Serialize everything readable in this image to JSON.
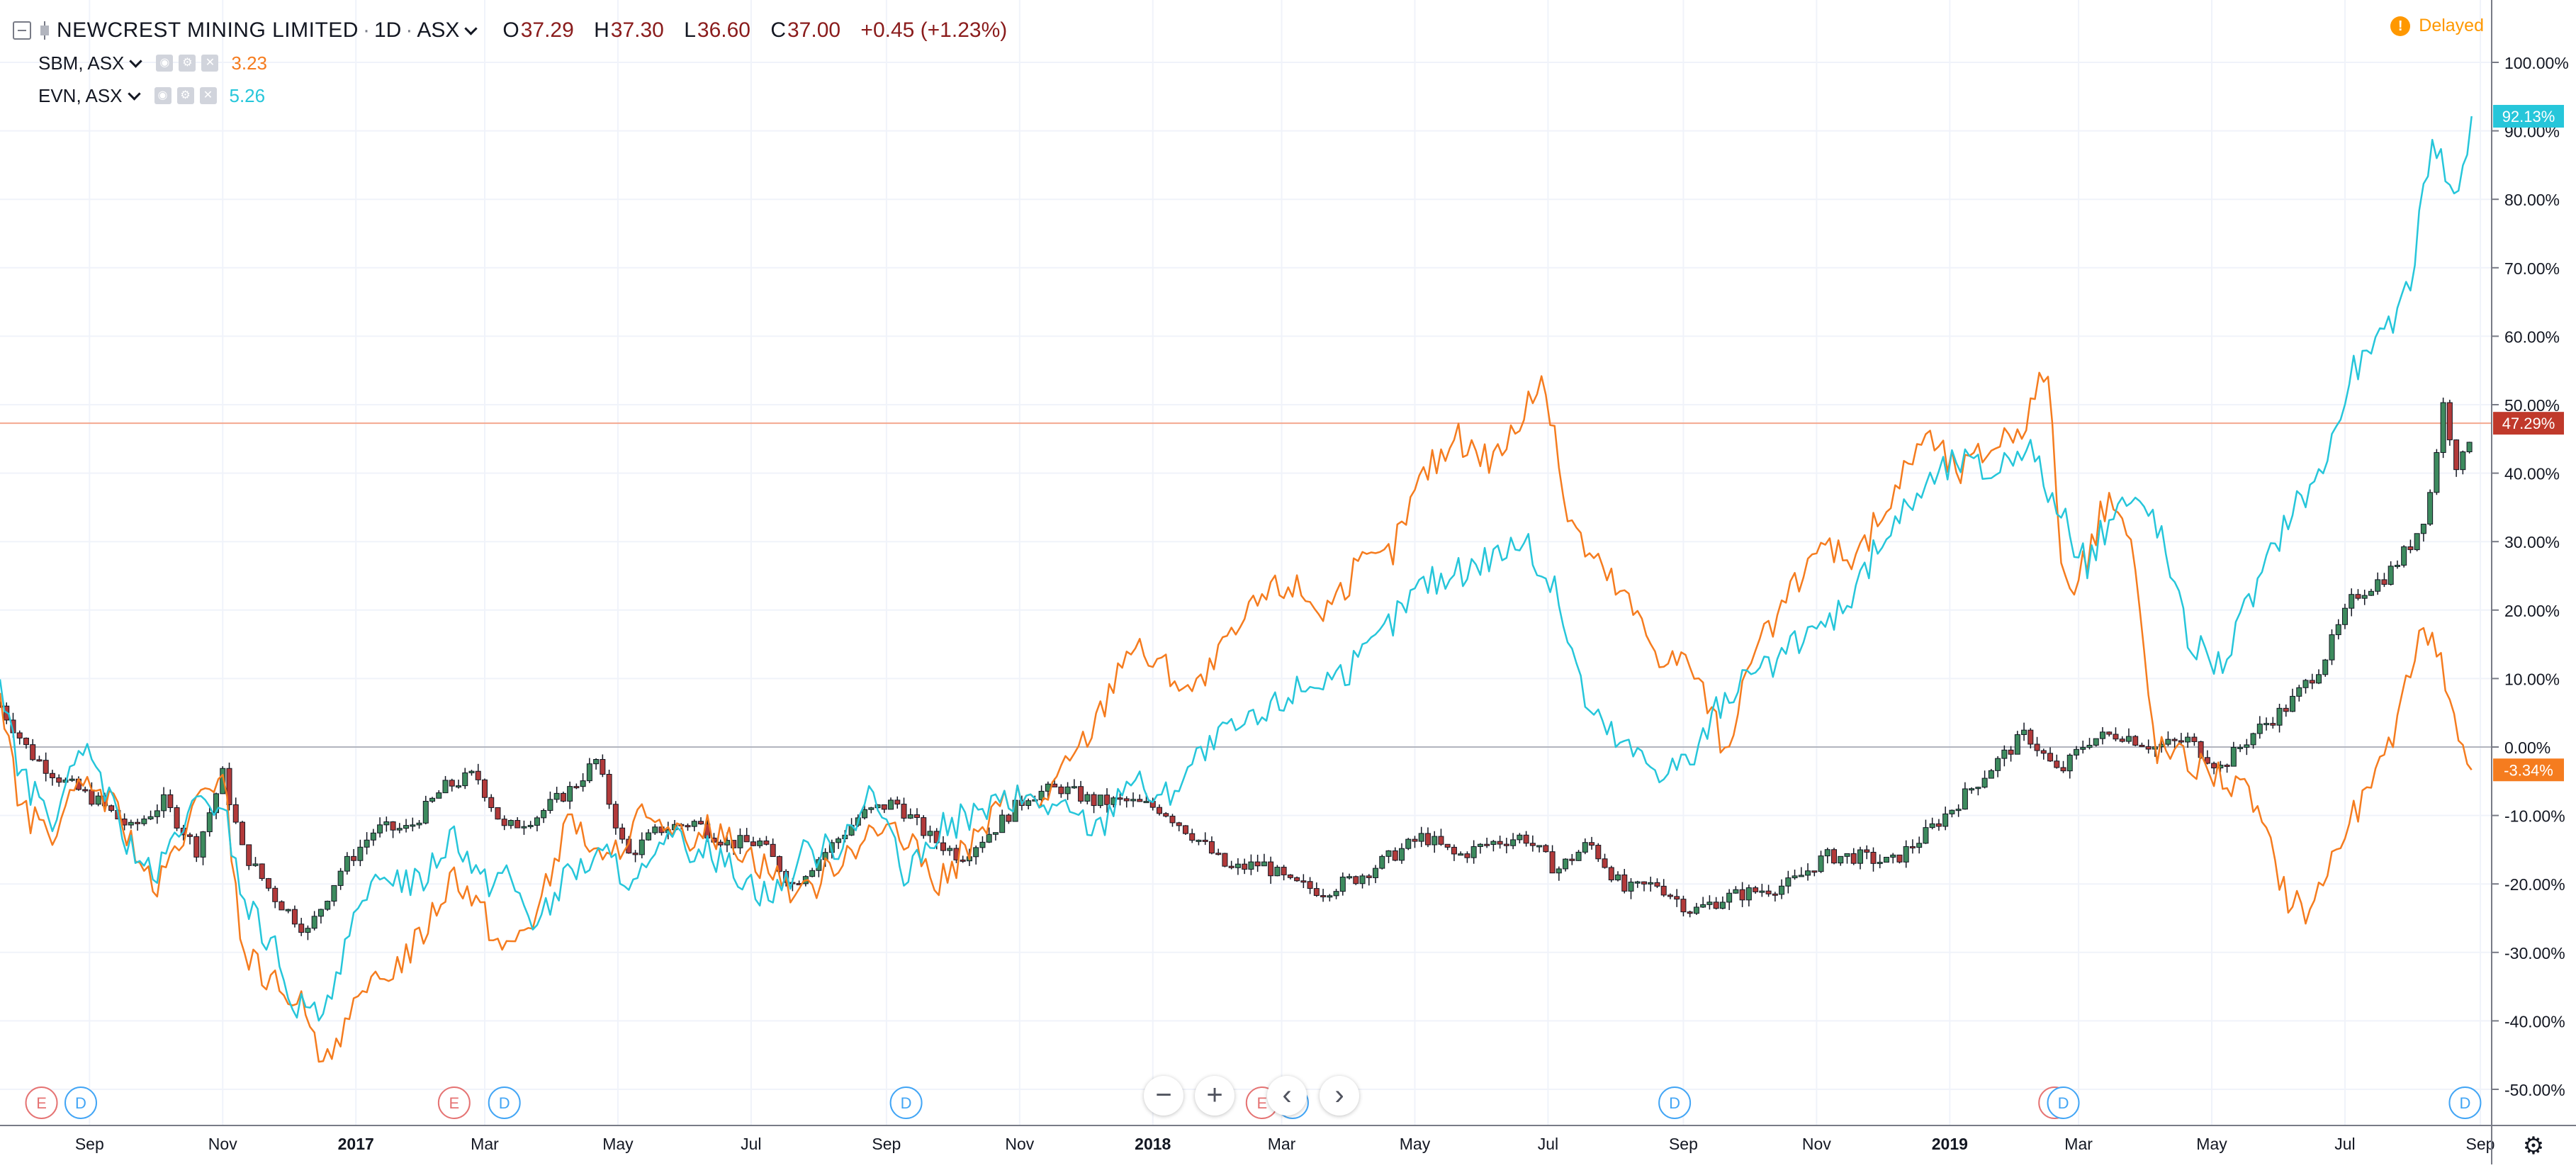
{
  "header": {
    "symbol": "NEWCREST MINING LIMITED",
    "interval": "1D",
    "exchange": "ASX",
    "ohlc": {
      "o_label": "O",
      "o": "37.29",
      "h_label": "H",
      "h": "37.30",
      "l_label": "L",
      "l": "36.60",
      "c_label": "C",
      "c": "37.00"
    },
    "change": "+0.45 (+1.23%)",
    "delayed_label": "Delayed",
    "delayed_icon": "!"
  },
  "compare": [
    {
      "name": "SBM, ASX",
      "value": "3.23",
      "color": "#f57c1f"
    },
    {
      "name": "EVN, ASX",
      "value": "5.26",
      "color": "#26c6da"
    }
  ],
  "nav": {
    "zoom_out": "−",
    "zoom_in": "+",
    "scroll_left": "‹",
    "scroll_right": "›"
  },
  "chart_data": {
    "type": "line",
    "y_scale": "percent",
    "ylim": [
      -55,
      103
    ],
    "y_ticks": [
      -50,
      -40,
      -30,
      -20,
      -10,
      0,
      10,
      20,
      30,
      40,
      50,
      60,
      70,
      80,
      90,
      100
    ],
    "y_tick_labels": [
      "-50.00%",
      "-40.00%",
      "-30.00%",
      "-20.00%",
      "-10.00%",
      "0.00%",
      "10.00%",
      "20.00%",
      "30.00%",
      "40.00%",
      "50.00%",
      "60.00%",
      "70.00%",
      "80.00%",
      "90.00%",
      "100.00%"
    ],
    "xlim": [
      "2016-07-22",
      "2019-09-01"
    ],
    "x_ticks": [
      {
        "date": "2016-09-01",
        "label": "Sep"
      },
      {
        "date": "2016-11-01",
        "label": "Nov"
      },
      {
        "date": "2017-01-01",
        "label": "2017"
      },
      {
        "date": "2017-03-01",
        "label": "Mar"
      },
      {
        "date": "2017-05-01",
        "label": "May"
      },
      {
        "date": "2017-07-01",
        "label": "Jul"
      },
      {
        "date": "2017-09-01",
        "label": "Sep"
      },
      {
        "date": "2017-11-01",
        "label": "Nov"
      },
      {
        "date": "2018-01-01",
        "label": "2018"
      },
      {
        "date": "2018-03-01",
        "label": "Mar"
      },
      {
        "date": "2018-05-01",
        "label": "May"
      },
      {
        "date": "2018-07-01",
        "label": "Jul"
      },
      {
        "date": "2018-09-01",
        "label": "Sep"
      },
      {
        "date": "2018-11-01",
        "label": "Nov"
      },
      {
        "date": "2019-01-01",
        "label": "2019"
      },
      {
        "date": "2019-03-01",
        "label": "Mar"
      },
      {
        "date": "2019-05-01",
        "label": "May"
      },
      {
        "date": "2019-07-01",
        "label": "Jul"
      },
      {
        "date": "2019-09-01",
        "label": "Sep"
      }
    ],
    "grid": true,
    "main_series": {
      "name": "NEWCREST MINING LIMITED",
      "style": "candles",
      "up_color": "#3d8b5e",
      "down_color": "#b23a3a",
      "last_value": 47.29,
      "last_label": "47.29%",
      "label_color": "#c0392b",
      "x": [
        "2016-07-22",
        "2016-08-05",
        "2016-08-20",
        "2016-09-05",
        "2016-09-20",
        "2016-10-05",
        "2016-10-20",
        "2016-11-01",
        "2016-11-10",
        "2016-11-25",
        "2016-12-10",
        "2016-12-25",
        "2017-01-10",
        "2017-01-25",
        "2017-02-10",
        "2017-02-25",
        "2017-03-10",
        "2017-03-25",
        "2017-04-10",
        "2017-04-21",
        "2017-05-05",
        "2017-05-20",
        "2017-06-05",
        "2017-06-20",
        "2017-07-05",
        "2017-07-20",
        "2017-08-05",
        "2017-08-20",
        "2017-09-05",
        "2017-09-20",
        "2017-10-05",
        "2017-10-20",
        "2017-11-05",
        "2017-11-20",
        "2017-12-05",
        "2017-12-20",
        "2018-01-05",
        "2018-01-20",
        "2018-02-05",
        "2018-02-20",
        "2018-03-05",
        "2018-03-20",
        "2018-04-05",
        "2018-04-20",
        "2018-05-05",
        "2018-05-20",
        "2018-06-05",
        "2018-06-20",
        "2018-07-05",
        "2018-07-20",
        "2018-08-05",
        "2018-08-20",
        "2018-09-05",
        "2018-09-20",
        "2018-10-05",
        "2018-10-20",
        "2018-11-05",
        "2018-11-20",
        "2018-12-05",
        "2018-12-20",
        "2019-01-05",
        "2019-01-20",
        "2019-02-05",
        "2019-02-20",
        "2019-03-05",
        "2019-03-20",
        "2019-04-05",
        "2019-04-20",
        "2019-05-05",
        "2019-05-20",
        "2019-06-05",
        "2019-06-20",
        "2019-07-05",
        "2019-07-20",
        "2019-08-01",
        "2019-08-08",
        "2019-08-15",
        "2019-08-22",
        "2019-08-29"
      ],
      "values": [
        6,
        -1,
        -5,
        -8,
        -12,
        -8,
        -15,
        -4,
        -15,
        -22,
        -27,
        -18,
        -12,
        -12,
        -6,
        -4,
        -12,
        -10,
        -6,
        -2,
        -16,
        -12,
        -11,
        -14,
        -14,
        -20,
        -15,
        -10,
        -8,
        -13,
        -16,
        -12,
        -7,
        -6,
        -8,
        -8,
        -9,
        -13,
        -18,
        -17,
        -20,
        -21,
        -19,
        -16,
        -13,
        -16,
        -14,
        -13,
        -18,
        -14,
        -21,
        -20,
        -24,
        -22,
        -21,
        -20,
        -16,
        -16,
        -17,
        -13,
        -8,
        -3,
        2,
        -4,
        1,
        2,
        0,
        1,
        -3,
        2,
        6,
        12,
        22,
        25,
        30,
        35,
        50,
        40,
        47.29
      ]
    },
    "series": [
      {
        "name": "SBM, ASX",
        "color": "#f57c1f",
        "last_value": -3.34,
        "last_label": "-3.34%",
        "x": [
          "2016-07-22",
          "2016-08-01",
          "2016-08-15",
          "2016-09-01",
          "2016-09-15",
          "2016-10-01",
          "2016-10-15",
          "2016-11-01",
          "2016-11-10",
          "2016-11-25",
          "2016-12-05",
          "2016-12-15",
          "2016-12-28",
          "2017-01-15",
          "2017-01-30",
          "2017-02-15",
          "2017-02-28",
          "2017-03-10",
          "2017-03-25",
          "2017-04-10",
          "2017-04-25",
          "2017-05-10",
          "2017-05-25",
          "2017-06-10",
          "2017-06-25",
          "2017-07-10",
          "2017-07-25",
          "2017-08-10",
          "2017-08-25",
          "2017-09-10",
          "2017-09-25",
          "2017-10-10",
          "2017-10-25",
          "2017-11-10",
          "2017-11-25",
          "2017-12-08",
          "2017-12-20",
          "2018-01-05",
          "2018-01-20",
          "2018-02-05",
          "2018-02-20",
          "2018-03-05",
          "2018-03-20",
          "2018-04-05",
          "2018-04-20",
          "2018-05-05",
          "2018-05-20",
          "2018-06-05",
          "2018-06-20",
          "2018-06-28",
          "2018-07-10",
          "2018-07-20",
          "2018-08-05",
          "2018-08-20",
          "2018-09-05",
          "2018-09-20",
          "2018-10-05",
          "2018-10-20",
          "2018-11-05",
          "2018-11-20",
          "2018-12-05",
          "2018-12-20",
          "2019-01-05",
          "2019-01-20",
          "2019-02-05",
          "2019-02-15",
          "2019-02-22",
          "2019-03-05",
          "2019-03-15",
          "2019-03-25",
          "2019-04-05",
          "2019-04-20",
          "2019-05-05",
          "2019-05-20",
          "2019-06-05",
          "2019-06-15",
          "2019-06-25",
          "2019-07-05",
          "2019-07-20",
          "2019-08-01",
          "2019-08-10",
          "2019-08-20",
          "2019-08-29"
        ],
        "values": [
          8,
          -10,
          -12,
          -5,
          -10,
          -22,
          -12,
          -3,
          -30,
          -35,
          -36,
          -46,
          -40,
          -33,
          -28,
          -18,
          -24,
          -30,
          -24,
          -10,
          -18,
          -10,
          -14,
          -12,
          -14,
          -18,
          -22,
          -16,
          -12,
          -14,
          -20,
          -14,
          -8,
          -8,
          -2,
          5,
          15,
          12,
          8,
          15,
          22,
          24,
          20,
          26,
          28,
          40,
          45,
          42,
          48,
          55,
          34,
          28,
          22,
          14,
          12,
          0,
          14,
          22,
          30,
          28,
          36,
          46,
          40,
          44,
          48,
          56,
          22,
          28,
          37,
          30,
          0,
          -2,
          -4,
          -8,
          -22,
          -24,
          -16,
          -10,
          -2,
          14,
          18,
          4,
          -3.34
        ]
      },
      {
        "name": "EVN, ASX",
        "color": "#26c6da",
        "last_value": 92.13,
        "last_label": "92.13%",
        "x": [
          "2016-07-22",
          "2016-08-01",
          "2016-08-15",
          "2016-09-01",
          "2016-09-15",
          "2016-10-01",
          "2016-10-15",
          "2016-11-01",
          "2016-11-10",
          "2016-11-25",
          "2016-12-05",
          "2016-12-15",
          "2016-12-28",
          "2017-01-15",
          "2017-01-30",
          "2017-02-15",
          "2017-02-28",
          "2017-03-10",
          "2017-03-25",
          "2017-04-10",
          "2017-04-25",
          "2017-05-10",
          "2017-05-25",
          "2017-06-10",
          "2017-06-25",
          "2017-07-10",
          "2017-07-25",
          "2017-08-10",
          "2017-08-25",
          "2017-09-10",
          "2017-09-25",
          "2017-10-10",
          "2017-10-25",
          "2017-11-10",
          "2017-11-25",
          "2017-12-08",
          "2017-12-20",
          "2018-01-05",
          "2018-01-20",
          "2018-02-05",
          "2018-02-20",
          "2018-03-05",
          "2018-03-20",
          "2018-04-05",
          "2018-04-20",
          "2018-05-05",
          "2018-05-20",
          "2018-06-05",
          "2018-06-20",
          "2018-07-05",
          "2018-07-20",
          "2018-08-05",
          "2018-08-20",
          "2018-09-05",
          "2018-09-20",
          "2018-10-05",
          "2018-10-20",
          "2018-11-05",
          "2018-11-20",
          "2018-12-05",
          "2018-12-20",
          "2019-01-05",
          "2019-01-20",
          "2019-02-05",
          "2019-02-20",
          "2019-03-05",
          "2019-03-20",
          "2019-04-05",
          "2019-04-20",
          "2019-05-05",
          "2019-05-20",
          "2019-06-05",
          "2019-06-20",
          "2019-07-05",
          "2019-07-20",
          "2019-08-01",
          "2019-08-10",
          "2019-08-20",
          "2019-08-29"
        ],
        "values": [
          10,
          -5,
          -10,
          0,
          -12,
          -20,
          -10,
          -8,
          -22,
          -30,
          -38,
          -40,
          -28,
          -18,
          -20,
          -12,
          -20,
          -18,
          -26,
          -18,
          -16,
          -20,
          -14,
          -15,
          -18,
          -22,
          -16,
          -14,
          -6,
          -20,
          -12,
          -10,
          -8,
          -8,
          -10,
          -12,
          -4,
          -8,
          -2,
          2,
          4,
          8,
          10,
          12,
          18,
          24,
          25,
          28,
          30,
          22,
          5,
          0,
          -3,
          -2,
          8,
          10,
          14,
          18,
          24,
          32,
          38,
          42,
          40,
          45,
          34,
          27,
          36,
          34,
          16,
          12,
          22,
          34,
          40,
          55,
          60,
          70,
          90,
          80,
          92.13
        ]
      }
    ],
    "event_markers": [
      {
        "date": "2016-08-10",
        "label": "E",
        "color": "#e57373"
      },
      {
        "date": "2016-08-28",
        "label": "D",
        "color": "#42a5f5"
      },
      {
        "date": "2017-02-15",
        "label": "E",
        "color": "#e57373"
      },
      {
        "date": "2017-03-10",
        "label": "D",
        "color": "#42a5f5"
      },
      {
        "date": "2017-09-10",
        "label": "D",
        "color": "#42a5f5"
      },
      {
        "date": "2018-02-20",
        "label": "E",
        "color": "#e57373"
      },
      {
        "date": "2018-03-06",
        "label": "D",
        "color": "#42a5f5"
      },
      {
        "date": "2018-08-28",
        "label": "D",
        "color": "#42a5f5"
      },
      {
        "date": "2019-02-18",
        "label": "E",
        "color": "#e57373"
      },
      {
        "date": "2019-02-22",
        "label": "D",
        "color": "#42a5f5"
      },
      {
        "date": "2019-08-25",
        "label": "D",
        "color": "#42a5f5"
      }
    ]
  }
}
